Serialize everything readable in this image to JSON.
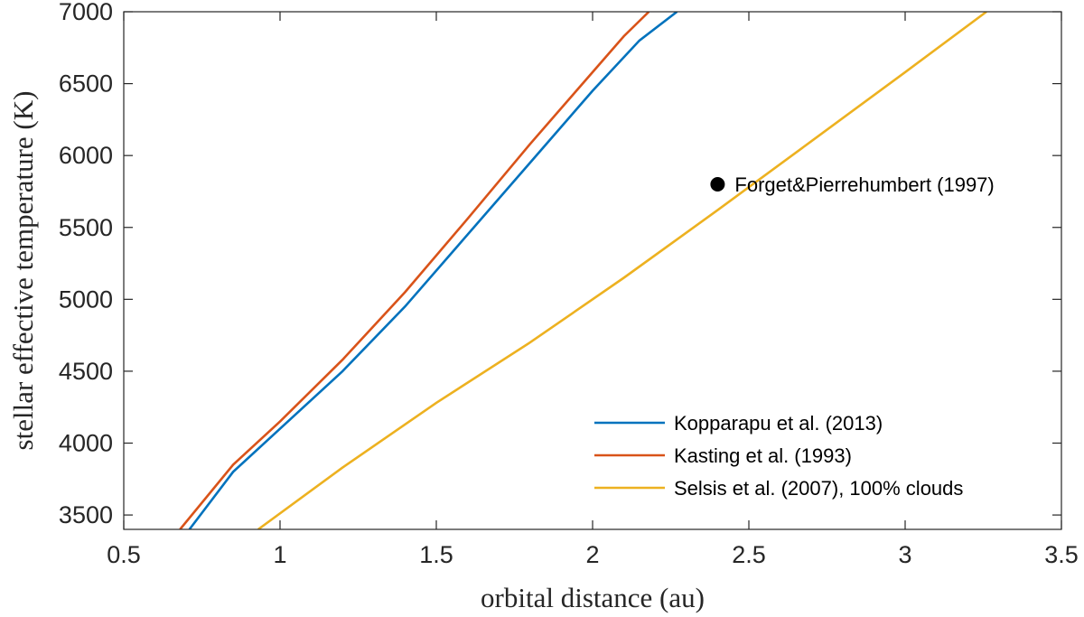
{
  "chart_data": {
    "type": "line",
    "title": "",
    "xlabel": "orbital distance (au)",
    "ylabel": "stellar effective temperature (K)",
    "xlim": [
      0.5,
      3.5
    ],
    "ylim": [
      3400,
      7000
    ],
    "xticks": [
      0.5,
      1,
      1.5,
      2,
      2.5,
      3,
      3.5
    ],
    "xtick_labels": [
      "0.5",
      "1",
      "1.5",
      "2",
      "2.5",
      "3",
      "3.5"
    ],
    "yticks": [
      3500,
      4000,
      4500,
      5000,
      5500,
      6000,
      6500,
      7000
    ],
    "ytick_labels": [
      "3500",
      "4000",
      "4500",
      "5000",
      "5500",
      "6000",
      "6500",
      "7000"
    ],
    "grid": false,
    "legend_position": "bottom-right",
    "series": [
      {
        "name": "Kopparapu et al. (2013)",
        "color": "#0072BD",
        "points": [
          [
            0.71,
            3400
          ],
          [
            0.85,
            3800
          ],
          [
            1.0,
            4100
          ],
          [
            1.2,
            4500
          ],
          [
            1.4,
            4950
          ],
          [
            1.6,
            5450
          ],
          [
            1.8,
            5950
          ],
          [
            2.0,
            6450
          ],
          [
            2.15,
            6800
          ],
          [
            2.27,
            7000
          ]
        ]
      },
      {
        "name": "Kasting et al. (1993)",
        "color": "#D95319",
        "points": [
          [
            0.68,
            3400
          ],
          [
            0.85,
            3850
          ],
          [
            1.0,
            4150
          ],
          [
            1.2,
            4580
          ],
          [
            1.4,
            5050
          ],
          [
            1.6,
            5560
          ],
          [
            1.8,
            6080
          ],
          [
            2.0,
            6580
          ],
          [
            2.1,
            6830
          ],
          [
            2.18,
            7000
          ]
        ]
      },
      {
        "name": "Selsis et al. (2007), 100% clouds",
        "color": "#EDB120",
        "points": [
          [
            0.93,
            3400
          ],
          [
            1.2,
            3830
          ],
          [
            1.5,
            4280
          ],
          [
            1.8,
            4700
          ],
          [
            2.1,
            5150
          ],
          [
            2.4,
            5620
          ],
          [
            2.7,
            6100
          ],
          [
            3.0,
            6580
          ],
          [
            3.26,
            7000
          ]
        ]
      }
    ],
    "annotations": [
      {
        "label": "Forget&Pierrehumbert (1997)",
        "x": 2.4,
        "y": 5800,
        "marker": "filled-circle",
        "color": "#000000"
      }
    ]
  }
}
